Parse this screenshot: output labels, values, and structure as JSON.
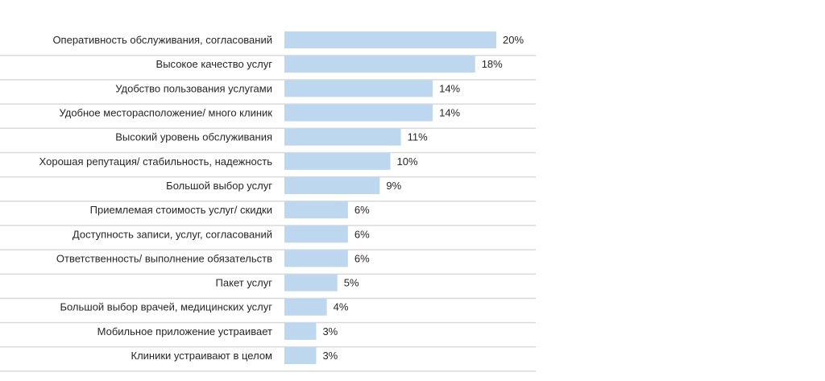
{
  "chart_data": {
    "type": "bar",
    "orientation": "horizontal",
    "categories": [
      "Оперативность обслуживания, согласований",
      "Высокое качество услуг",
      "Удобство пользования услугами",
      "Удобное месторасположение/ много клиник",
      "Высокий уровень обслуживания",
      "Хорошая репутация/ стабильность, надежность",
      "Большой выбор услуг",
      "Приемлемая стоимость услуг/ скидки",
      "Доступность записи, услуг, согласований",
      "Ответственность/ выполнение обязательств",
      "Пакет услуг",
      "Большой выбор врачей, медицинских услуг",
      "Мобильное приложение устраивает",
      "Клиники устраивают в целом"
    ],
    "values": [
      20,
      18,
      14,
      14,
      11,
      10,
      9,
      6,
      6,
      6,
      5,
      4,
      3,
      3
    ],
    "data_labels": [
      "20%",
      "18%",
      "14%",
      "14%",
      "11%",
      "10%",
      "9%",
      "6%",
      "6%",
      "6%",
      "5%",
      "4%",
      "3%",
      "3%"
    ],
    "title": "",
    "xlabel": "",
    "ylabel": "",
    "grid": false,
    "bar_color": "#bdd7ee",
    "separator_color": "#d9d9d9"
  }
}
